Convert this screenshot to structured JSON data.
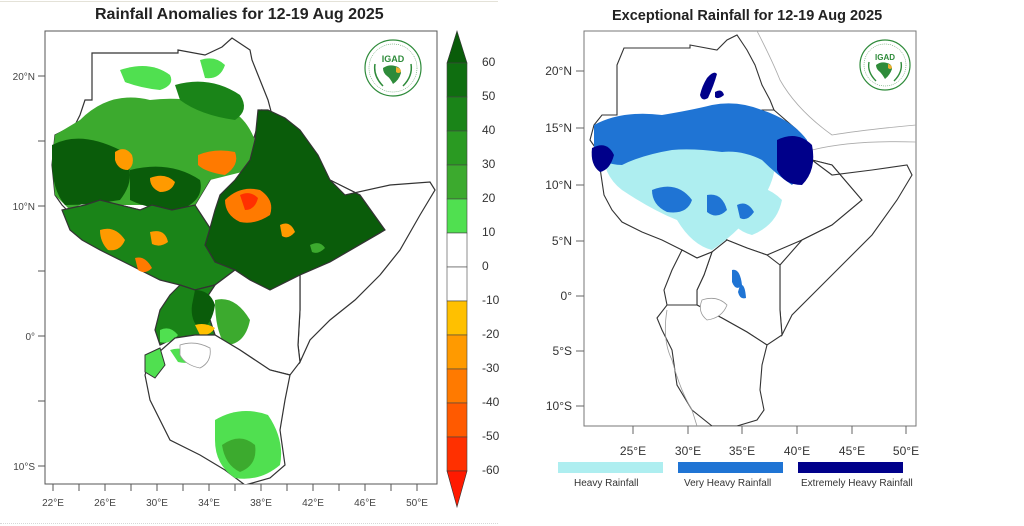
{
  "left_map": {
    "title": "Rainfall Anomalies for 12-19 Aug 2025",
    "logo_text": "IGAD",
    "lat_labels": [
      "20°N",
      "10°N",
      "0°",
      "10°S"
    ],
    "lon_labels": [
      "22°E",
      "26°E",
      "30°E",
      "34°E",
      "38°E",
      "42°E",
      "46°E",
      "50°E"
    ],
    "colorbar": {
      "levels": [
        "60",
        "50",
        "40",
        "30",
        "20",
        "10",
        "0",
        "-10",
        "-20",
        "-30",
        "-40",
        "-50",
        "-60"
      ],
      "colors": {
        "above_60": "#0a5c0a",
        "50_60": "#0f6e10",
        "40_50": "#1a8418",
        "30_40": "#2a9a22",
        "20_30": "#3caa2e",
        "10_20": "#50e050",
        "0_10": "#ffffff",
        "-10_0": "#ffffff",
        "-20_-10": "#ffc000",
        "-30_-20": "#ff9a00",
        "-40_-30": "#ff7a00",
        "-50_-40": "#ff5a00",
        "-60_-50": "#ff3000",
        "below_-60": "#ff1a00"
      }
    }
  },
  "right_map": {
    "title": "Exceptional Rainfall for 12-19 Aug 2025",
    "logo_text": "IGAD",
    "lat_labels": [
      "20°N",
      "15°N",
      "10°N",
      "5°N",
      "0°",
      "5°S",
      "10°S"
    ],
    "lon_labels": [
      "25°E",
      "30°E",
      "35°E",
      "40°E",
      "45°E",
      "50°E"
    ],
    "legend": [
      {
        "label": "Heavy Rainfall",
        "color": "#aeeef0"
      },
      {
        "label": "Very Heavy Rainfall",
        "color": "#1f74d4"
      },
      {
        "label": "Extremely Heavy Rainfall",
        "color": "#00008a"
      }
    ]
  }
}
